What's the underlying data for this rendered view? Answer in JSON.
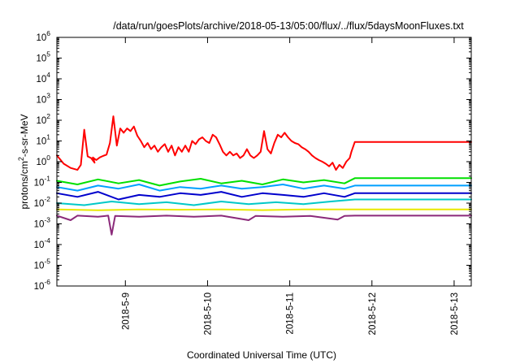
{
  "chart_data": {
    "type": "line",
    "title": "/data/run/goesPlots/archive/2018-05-13/05:00/flux/../flux/5daysMoonFluxes.txt",
    "xlabel": "Coordinated Universal Time (UTC)",
    "ylabel": {
      "pre": "protons/cm",
      "sup": "2",
      "post": "-s-sr-MeV"
    },
    "yscale": "log",
    "ylim": [
      1e-06,
      1000000.0
    ],
    "y_ticks": [
      {
        "value": 1e-06,
        "base": "10",
        "exp": "-6"
      },
      {
        "value": 1e-05,
        "base": "10",
        "exp": "-5"
      },
      {
        "value": 0.0001,
        "base": "10",
        "exp": "-4"
      },
      {
        "value": 0.001,
        "base": "10",
        "exp": "-3"
      },
      {
        "value": 0.01,
        "base": "10",
        "exp": "-2"
      },
      {
        "value": 0.1,
        "base": "10",
        "exp": "-1"
      },
      {
        "value": 1.0,
        "base": "10",
        "exp": "0"
      },
      {
        "value": 10.0,
        "base": "10",
        "exp": "1"
      },
      {
        "value": 100.0,
        "base": "10",
        "exp": "2"
      },
      {
        "value": 1000.0,
        "base": "10",
        "exp": "3"
      },
      {
        "value": 10000.0,
        "base": "10",
        "exp": "4"
      },
      {
        "value": 100000.0,
        "base": "10",
        "exp": "5"
      },
      {
        "value": 1000000.0,
        "base": "10",
        "exp": "6"
      }
    ],
    "xlim": [
      "2018-05-08 04:00",
      "2018-05-13 05:00"
    ],
    "x_ticks": [
      {
        "label": "2018-5-9",
        "value": "2018-05-09 00:00"
      },
      {
        "label": "2018-5-10",
        "value": "2018-05-10 00:00"
      },
      {
        "label": "2018-5-11",
        "value": "2018-05-11 00:00"
      },
      {
        "label": "2018-5-12",
        "value": "2018-05-12 00:00"
      },
      {
        "label": "2018-5-13",
        "value": "2018-05-13 00:00"
      }
    ],
    "grid": false,
    "series": [
      {
        "color": "#ff0000",
        "points": [
          [
            "2018-05-08 04:00",
            2.0
          ],
          [
            "2018-05-08 06:00",
            0.8
          ],
          [
            "2018-05-08 08:00",
            0.5
          ],
          [
            "2018-05-08 10:00",
            0.4
          ],
          [
            "2018-05-08 11:00",
            0.7
          ],
          [
            "2018-05-08 12:00",
            35
          ],
          [
            "2018-05-08 13:00",
            1.8
          ],
          [
            "2018-05-08 14:00",
            1.5
          ],
          [
            "2018-05-08 15:00",
            0.9
          ],
          [
            "2018-05-08 14:30",
            1.6
          ],
          [
            "2018-05-08 15:30",
            1.2
          ],
          [
            "2018-05-08 16:30",
            1.6
          ],
          [
            "2018-05-08 17:30",
            1.9
          ],
          [
            "2018-05-08 18:30",
            2.2
          ],
          [
            "2018-05-08 19:30",
            8
          ],
          [
            "2018-05-08 20:30",
            155
          ],
          [
            "2018-05-08 21:30",
            6
          ],
          [
            "2018-05-08 22:30",
            40
          ],
          [
            "2018-05-08 23:30",
            25
          ],
          [
            "2018-05-09 00:30",
            40
          ],
          [
            "2018-05-09 01:30",
            30
          ],
          [
            "2018-05-09 02:30",
            50
          ],
          [
            "2018-05-09 03:30",
            18
          ],
          [
            "2018-05-09 04:30",
            10
          ],
          [
            "2018-05-09 05:30",
            5
          ],
          [
            "2018-05-09 06:30",
            8
          ],
          [
            "2018-05-09 07:30",
            4
          ],
          [
            "2018-05-09 08:30",
            6
          ],
          [
            "2018-05-09 09:30",
            3
          ],
          [
            "2018-05-09 10:30",
            5
          ],
          [
            "2018-05-09 11:30",
            7
          ],
          [
            "2018-05-09 12:30",
            3
          ],
          [
            "2018-05-09 13:30",
            6
          ],
          [
            "2018-05-09 14:30",
            2
          ],
          [
            "2018-05-09 15:30",
            5
          ],
          [
            "2018-05-09 16:30",
            3
          ],
          [
            "2018-05-09 17:30",
            6
          ],
          [
            "2018-05-09 18:30",
            3
          ],
          [
            "2018-05-09 19:30",
            10
          ],
          [
            "2018-05-09 20:30",
            7
          ],
          [
            "2018-05-09 21:30",
            12
          ],
          [
            "2018-05-09 22:30",
            15
          ],
          [
            "2018-05-09 23:30",
            10
          ],
          [
            "2018-05-10 00:30",
            8
          ],
          [
            "2018-05-10 01:30",
            20
          ],
          [
            "2018-05-10 02:30",
            15
          ],
          [
            "2018-05-10 03:30",
            7
          ],
          [
            "2018-05-10 04:30",
            3
          ],
          [
            "2018-05-10 05:30",
            2
          ],
          [
            "2018-05-10 06:30",
            3
          ],
          [
            "2018-05-10 07:30",
            2
          ],
          [
            "2018-05-10 08:30",
            2.5
          ],
          [
            "2018-05-10 09:30",
            1.5
          ],
          [
            "2018-05-10 10:30",
            2
          ],
          [
            "2018-05-10 11:30",
            4
          ],
          [
            "2018-05-10 12:30",
            2
          ],
          [
            "2018-05-10 13:30",
            1.5
          ],
          [
            "2018-05-10 14:30",
            2
          ],
          [
            "2018-05-10 15:30",
            3
          ],
          [
            "2018-05-10 16:30",
            30
          ],
          [
            "2018-05-10 17:30",
            4
          ],
          [
            "2018-05-10 18:30",
            2.5
          ],
          [
            "2018-05-10 19:30",
            8
          ],
          [
            "2018-05-10 20:30",
            20
          ],
          [
            "2018-05-10 21:30",
            15
          ],
          [
            "2018-05-10 22:30",
            25
          ],
          [
            "2018-05-10 23:30",
            15
          ],
          [
            "2018-05-11 00:30",
            10
          ],
          [
            "2018-05-11 01:30",
            8
          ],
          [
            "2018-05-11 02:30",
            7
          ],
          [
            "2018-05-11 03:30",
            5
          ],
          [
            "2018-05-11 04:30",
            4
          ],
          [
            "2018-05-11 05:30",
            3
          ],
          [
            "2018-05-11 06:30",
            2
          ],
          [
            "2018-05-11 07:30",
            1.5
          ],
          [
            "2018-05-11 08:30",
            1.2
          ],
          [
            "2018-05-11 09:30",
            1.0
          ],
          [
            "2018-05-11 10:30",
            0.8
          ],
          [
            "2018-05-11 11:30",
            0.6
          ],
          [
            "2018-05-11 12:30",
            0.9
          ],
          [
            "2018-05-11 13:30",
            0.4
          ],
          [
            "2018-05-11 14:30",
            0.7
          ],
          [
            "2018-05-11 15:30",
            0.5
          ],
          [
            "2018-05-11 16:30",
            1.0
          ],
          [
            "2018-05-11 17:30",
            1.5
          ],
          [
            "2018-05-11 18:00",
            3
          ],
          [
            "2018-05-11 19:00",
            9
          ],
          [
            "2018-05-13 05:00",
            9
          ]
        ]
      },
      {
        "color": "#00e000",
        "points": [
          [
            "2018-05-08 04:00",
            0.12
          ],
          [
            "2018-05-08 10:00",
            0.08
          ],
          [
            "2018-05-08 16:00",
            0.14
          ],
          [
            "2018-05-08 22:00",
            0.09
          ],
          [
            "2018-05-09 04:00",
            0.13
          ],
          [
            "2018-05-09 10:00",
            0.07
          ],
          [
            "2018-05-09 16:00",
            0.11
          ],
          [
            "2018-05-09 22:00",
            0.15
          ],
          [
            "2018-05-10 04:00",
            0.09
          ],
          [
            "2018-05-10 10:00",
            0.12
          ],
          [
            "2018-05-10 16:00",
            0.08
          ],
          [
            "2018-05-10 22:00",
            0.14
          ],
          [
            "2018-05-11 04:00",
            0.1
          ],
          [
            "2018-05-11 10:00",
            0.13
          ],
          [
            "2018-05-11 16:00",
            0.09
          ],
          [
            "2018-05-11 19:00",
            0.16
          ],
          [
            "2018-05-13 05:00",
            0.16
          ]
        ]
      },
      {
        "color": "#00a0ff",
        "points": [
          [
            "2018-05-08 04:00",
            0.06
          ],
          [
            "2018-05-08 10:00",
            0.04
          ],
          [
            "2018-05-08 16:00",
            0.07
          ],
          [
            "2018-05-08 22:00",
            0.05
          ],
          [
            "2018-05-09 04:00",
            0.08
          ],
          [
            "2018-05-09 10:00",
            0.04
          ],
          [
            "2018-05-09 16:00",
            0.06
          ],
          [
            "2018-05-09 22:00",
            0.05
          ],
          [
            "2018-05-10 04:00",
            0.07
          ],
          [
            "2018-05-10 10:00",
            0.05
          ],
          [
            "2018-05-10 16:00",
            0.06
          ],
          [
            "2018-05-10 22:00",
            0.08
          ],
          [
            "2018-05-11 04:00",
            0.05
          ],
          [
            "2018-05-11 10:00",
            0.07
          ],
          [
            "2018-05-11 16:00",
            0.05
          ],
          [
            "2018-05-11 19:00",
            0.07
          ],
          [
            "2018-05-13 05:00",
            0.07
          ]
        ]
      },
      {
        "color": "#0000cc",
        "points": [
          [
            "2018-05-08 04:00",
            0.03
          ],
          [
            "2018-05-08 10:00",
            0.02
          ],
          [
            "2018-05-08 16:00",
            0.035
          ],
          [
            "2018-05-08 22:00",
            0.015
          ],
          [
            "2018-05-09 04:00",
            0.025
          ],
          [
            "2018-05-09 10:00",
            0.02
          ],
          [
            "2018-05-09 16:00",
            0.03
          ],
          [
            "2018-05-09 22:00",
            0.025
          ],
          [
            "2018-05-10 04:00",
            0.035
          ],
          [
            "2018-05-10 10:00",
            0.02
          ],
          [
            "2018-05-10 16:00",
            0.03
          ],
          [
            "2018-05-10 22:00",
            0.025
          ],
          [
            "2018-05-11 04:00",
            0.02
          ],
          [
            "2018-05-11 10:00",
            0.03
          ],
          [
            "2018-05-11 16:00",
            0.02
          ],
          [
            "2018-05-11 19:00",
            0.03
          ],
          [
            "2018-05-13 05:00",
            0.03
          ]
        ]
      },
      {
        "color": "#00c8c8",
        "points": [
          [
            "2018-05-08 04:00",
            0.01
          ],
          [
            "2018-05-08 12:00",
            0.008
          ],
          [
            "2018-05-08 20:00",
            0.012
          ],
          [
            "2018-05-09 04:00",
            0.009
          ],
          [
            "2018-05-09 12:00",
            0.011
          ],
          [
            "2018-05-09 20:00",
            0.008
          ],
          [
            "2018-05-10 04:00",
            0.012
          ],
          [
            "2018-05-10 12:00",
            0.009
          ],
          [
            "2018-05-10 20:00",
            0.011
          ],
          [
            "2018-05-11 04:00",
            0.009
          ],
          [
            "2018-05-11 12:00",
            0.012
          ],
          [
            "2018-05-11 19:00",
            0.015
          ],
          [
            "2018-05-13 05:00",
            0.015
          ]
        ]
      },
      {
        "color": "#e8e800",
        "points": [
          [
            "2018-05-08 04:00",
            0.005
          ],
          [
            "2018-05-08 16:00",
            0.0045
          ],
          [
            "2018-05-09 04:00",
            0.005
          ],
          [
            "2018-05-09 16:00",
            0.0048
          ],
          [
            "2018-05-10 04:00",
            0.005
          ],
          [
            "2018-05-10 16:00",
            0.0046
          ],
          [
            "2018-05-11 04:00",
            0.005
          ],
          [
            "2018-05-11 19:00",
            0.005
          ],
          [
            "2018-05-13 05:00",
            0.005
          ]
        ]
      },
      {
        "color": "#8b2a7a",
        "points": [
          [
            "2018-05-08 04:00",
            0.0025
          ],
          [
            "2018-05-08 08:00",
            0.0015
          ],
          [
            "2018-05-08 10:00",
            0.0025
          ],
          [
            "2018-05-08 16:00",
            0.0022
          ],
          [
            "2018-05-08 19:00",
            0.0025
          ],
          [
            "2018-05-08 20:00",
            0.0003
          ],
          [
            "2018-05-08 21:00",
            0.0024
          ],
          [
            "2018-05-09 04:00",
            0.0022
          ],
          [
            "2018-05-09 12:00",
            0.0025
          ],
          [
            "2018-05-09 20:00",
            0.0022
          ],
          [
            "2018-05-10 04:00",
            0.0025
          ],
          [
            "2018-05-10 12:00",
            0.0015
          ],
          [
            "2018-05-10 14:00",
            0.0024
          ],
          [
            "2018-05-10 22:00",
            0.0022
          ],
          [
            "2018-05-11 06:00",
            0.0024
          ],
          [
            "2018-05-11 14:00",
            0.0016
          ],
          [
            "2018-05-11 16:00",
            0.0024
          ],
          [
            "2018-05-11 19:00",
            0.0025
          ],
          [
            "2018-05-13 05:00",
            0.0025
          ]
        ]
      }
    ]
  }
}
